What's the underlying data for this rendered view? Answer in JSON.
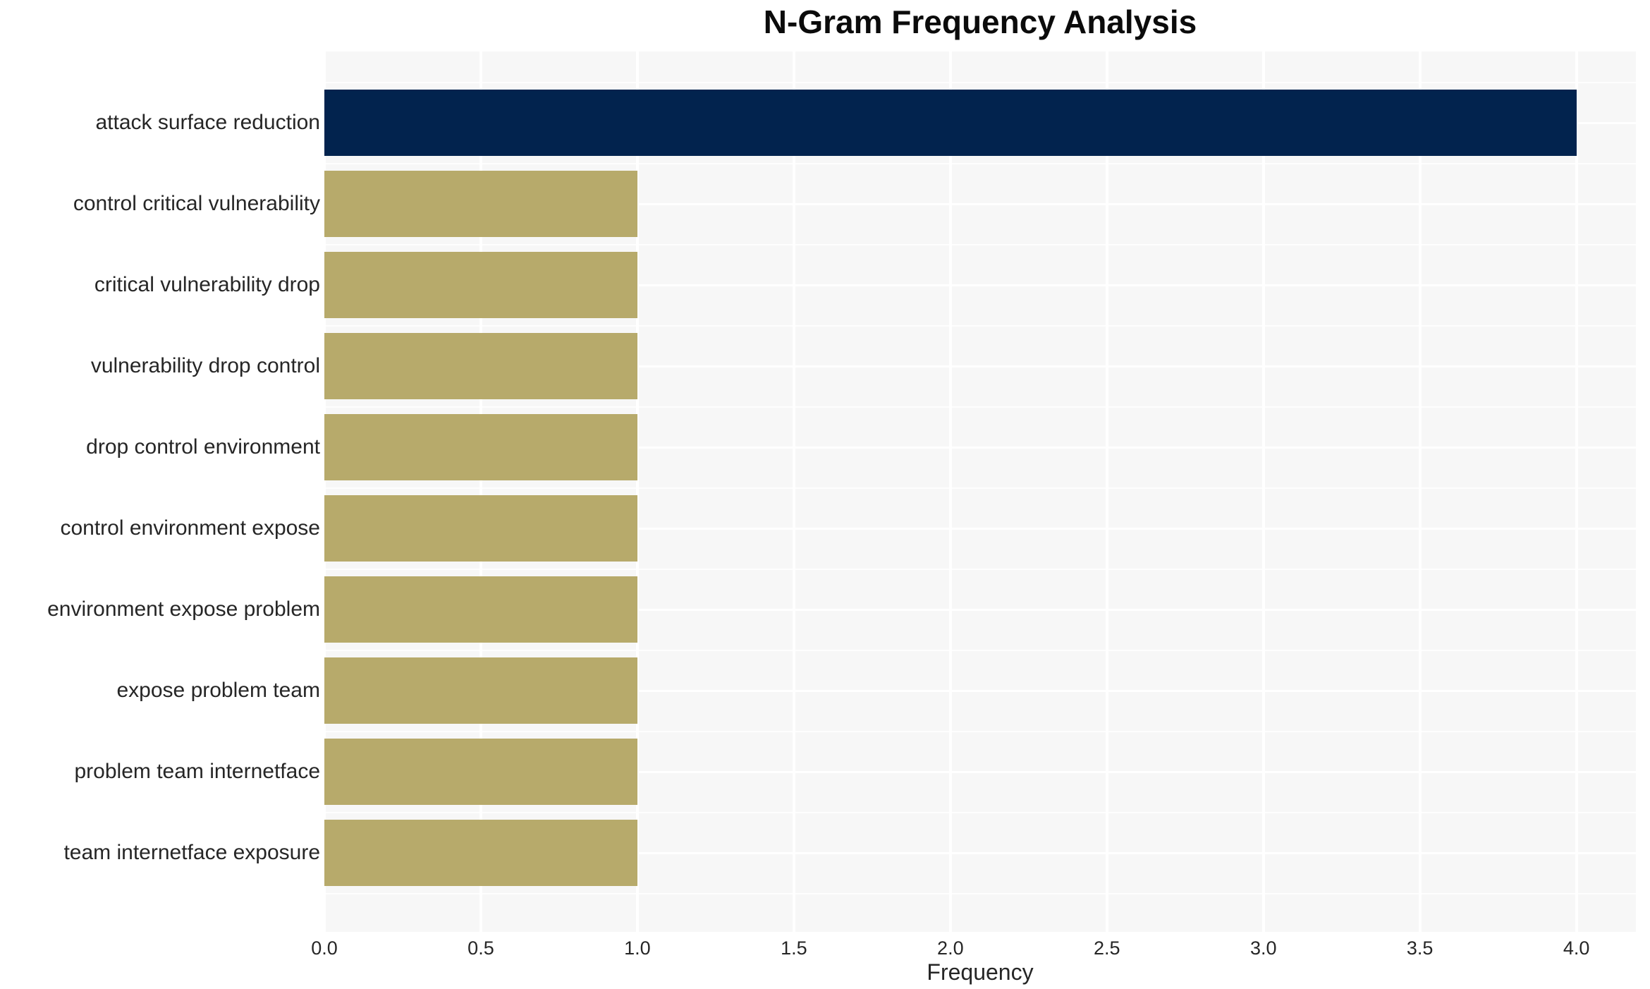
{
  "chart_data": {
    "type": "bar",
    "orientation": "horizontal",
    "title": "N-Gram Frequency Analysis",
    "xlabel": "Frequency",
    "ylabel": "",
    "categories": [
      "attack surface reduction",
      "control critical vulnerability",
      "critical vulnerability drop",
      "vulnerability drop control",
      "drop control environment",
      "control environment expose",
      "environment expose problem",
      "expose problem team",
      "problem team internetface",
      "team internetface exposure"
    ],
    "values": [
      4,
      1,
      1,
      1,
      1,
      1,
      1,
      1,
      1,
      1
    ],
    "bar_colors": [
      "#02234E",
      "#B7AA6B",
      "#B7AA6B",
      "#B7AA6B",
      "#B7AA6B",
      "#B7AA6B",
      "#B7AA6B",
      "#B7AA6B",
      "#B7AA6B",
      "#B7AA6B"
    ],
    "xtick_values": [
      0,
      0.5,
      1,
      1.5,
      2,
      2.5,
      3,
      3.5,
      4
    ],
    "xtick_labels": [
      "0.0",
      "0.5",
      "1.0",
      "1.5",
      "2.0",
      "2.5",
      "3.0",
      "3.5",
      "4.0"
    ],
    "xlim": [
      0,
      4.19
    ],
    "grid": true,
    "legend": false
  },
  "colors": {
    "bar_highlight": "#02234E",
    "bar_default": "#B7AA6B",
    "plot_background": "#F7F7F7",
    "gridline": "#FFFFFF",
    "axis_text": "#262626",
    "title_text": "#0B0B0B",
    "page_background": "#FFFFFF"
  }
}
